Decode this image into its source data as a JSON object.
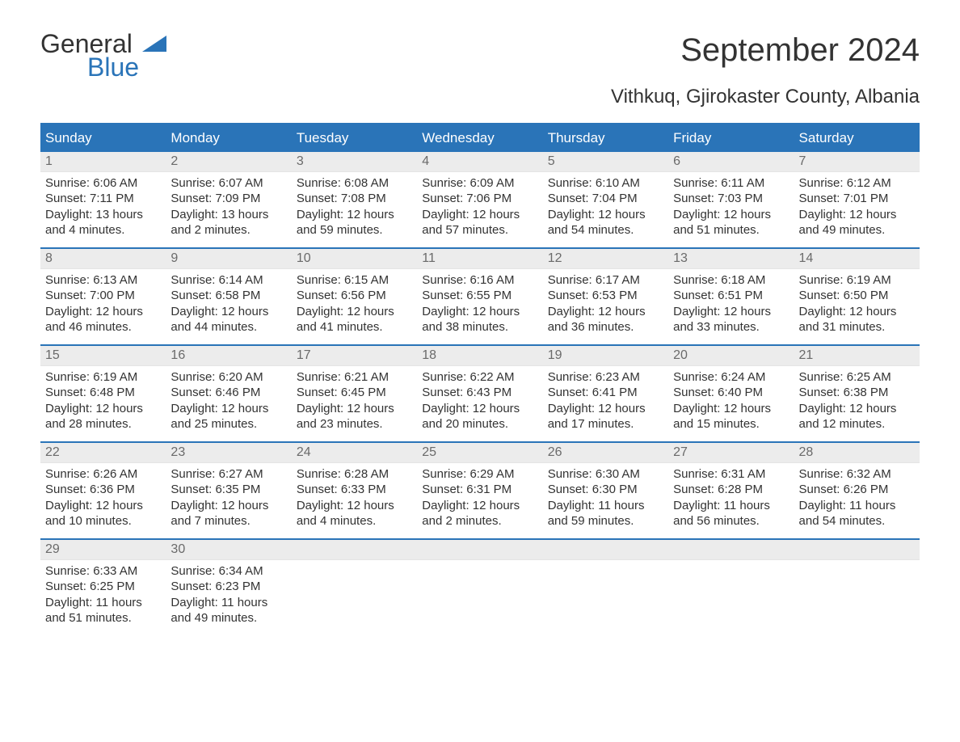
{
  "brand": {
    "line1": "General",
    "line2": "Blue"
  },
  "title": "September 2024",
  "location": "Vithkuq, Gjirokaster County, Albania",
  "colors": {
    "accent": "#2a74b8",
    "header_bg": "#2a74b8",
    "header_text": "#ffffff",
    "daynum_bg": "#ececec",
    "daynum_text": "#6a6a6a",
    "body_text": "#333333",
    "page_bg": "#ffffff"
  },
  "days_of_week": [
    "Sunday",
    "Monday",
    "Tuesday",
    "Wednesday",
    "Thursday",
    "Friday",
    "Saturday"
  ],
  "weeks": [
    [
      {
        "n": "1",
        "sunrise": "6:06 AM",
        "sunset": "7:11 PM",
        "dl1": "13 hours",
        "dl2": "and 4 minutes."
      },
      {
        "n": "2",
        "sunrise": "6:07 AM",
        "sunset": "7:09 PM",
        "dl1": "13 hours",
        "dl2": "and 2 minutes."
      },
      {
        "n": "3",
        "sunrise": "6:08 AM",
        "sunset": "7:08 PM",
        "dl1": "12 hours",
        "dl2": "and 59 minutes."
      },
      {
        "n": "4",
        "sunrise": "6:09 AM",
        "sunset": "7:06 PM",
        "dl1": "12 hours",
        "dl2": "and 57 minutes."
      },
      {
        "n": "5",
        "sunrise": "6:10 AM",
        "sunset": "7:04 PM",
        "dl1": "12 hours",
        "dl2": "and 54 minutes."
      },
      {
        "n": "6",
        "sunrise": "6:11 AM",
        "sunset": "7:03 PM",
        "dl1": "12 hours",
        "dl2": "and 51 minutes."
      },
      {
        "n": "7",
        "sunrise": "6:12 AM",
        "sunset": "7:01 PM",
        "dl1": "12 hours",
        "dl2": "and 49 minutes."
      }
    ],
    [
      {
        "n": "8",
        "sunrise": "6:13 AM",
        "sunset": "7:00 PM",
        "dl1": "12 hours",
        "dl2": "and 46 minutes."
      },
      {
        "n": "9",
        "sunrise": "6:14 AM",
        "sunset": "6:58 PM",
        "dl1": "12 hours",
        "dl2": "and 44 minutes."
      },
      {
        "n": "10",
        "sunrise": "6:15 AM",
        "sunset": "6:56 PM",
        "dl1": "12 hours",
        "dl2": "and 41 minutes."
      },
      {
        "n": "11",
        "sunrise": "6:16 AM",
        "sunset": "6:55 PM",
        "dl1": "12 hours",
        "dl2": "and 38 minutes."
      },
      {
        "n": "12",
        "sunrise": "6:17 AM",
        "sunset": "6:53 PM",
        "dl1": "12 hours",
        "dl2": "and 36 minutes."
      },
      {
        "n": "13",
        "sunrise": "6:18 AM",
        "sunset": "6:51 PM",
        "dl1": "12 hours",
        "dl2": "and 33 minutes."
      },
      {
        "n": "14",
        "sunrise": "6:19 AM",
        "sunset": "6:50 PM",
        "dl1": "12 hours",
        "dl2": "and 31 minutes."
      }
    ],
    [
      {
        "n": "15",
        "sunrise": "6:19 AM",
        "sunset": "6:48 PM",
        "dl1": "12 hours",
        "dl2": "and 28 minutes."
      },
      {
        "n": "16",
        "sunrise": "6:20 AM",
        "sunset": "6:46 PM",
        "dl1": "12 hours",
        "dl2": "and 25 minutes."
      },
      {
        "n": "17",
        "sunrise": "6:21 AM",
        "sunset": "6:45 PM",
        "dl1": "12 hours",
        "dl2": "and 23 minutes."
      },
      {
        "n": "18",
        "sunrise": "6:22 AM",
        "sunset": "6:43 PM",
        "dl1": "12 hours",
        "dl2": "and 20 minutes."
      },
      {
        "n": "19",
        "sunrise": "6:23 AM",
        "sunset": "6:41 PM",
        "dl1": "12 hours",
        "dl2": "and 17 minutes."
      },
      {
        "n": "20",
        "sunrise": "6:24 AM",
        "sunset": "6:40 PM",
        "dl1": "12 hours",
        "dl2": "and 15 minutes."
      },
      {
        "n": "21",
        "sunrise": "6:25 AM",
        "sunset": "6:38 PM",
        "dl1": "12 hours",
        "dl2": "and 12 minutes."
      }
    ],
    [
      {
        "n": "22",
        "sunrise": "6:26 AM",
        "sunset": "6:36 PM",
        "dl1": "12 hours",
        "dl2": "and 10 minutes."
      },
      {
        "n": "23",
        "sunrise": "6:27 AM",
        "sunset": "6:35 PM",
        "dl1": "12 hours",
        "dl2": "and 7 minutes."
      },
      {
        "n": "24",
        "sunrise": "6:28 AM",
        "sunset": "6:33 PM",
        "dl1": "12 hours",
        "dl2": "and 4 minutes."
      },
      {
        "n": "25",
        "sunrise": "6:29 AM",
        "sunset": "6:31 PM",
        "dl1": "12 hours",
        "dl2": "and 2 minutes."
      },
      {
        "n": "26",
        "sunrise": "6:30 AM",
        "sunset": "6:30 PM",
        "dl1": "11 hours",
        "dl2": "and 59 minutes."
      },
      {
        "n": "27",
        "sunrise": "6:31 AM",
        "sunset": "6:28 PM",
        "dl1": "11 hours",
        "dl2": "and 56 minutes."
      },
      {
        "n": "28",
        "sunrise": "6:32 AM",
        "sunset": "6:26 PM",
        "dl1": "11 hours",
        "dl2": "and 54 minutes."
      }
    ],
    [
      {
        "n": "29",
        "sunrise": "6:33 AM",
        "sunset": "6:25 PM",
        "dl1": "11 hours",
        "dl2": "and 51 minutes."
      },
      {
        "n": "30",
        "sunrise": "6:34 AM",
        "sunset": "6:23 PM",
        "dl1": "11 hours",
        "dl2": "and 49 minutes."
      },
      {
        "n": "",
        "empty": true
      },
      {
        "n": "",
        "empty": true
      },
      {
        "n": "",
        "empty": true
      },
      {
        "n": "",
        "empty": true
      },
      {
        "n": "",
        "empty": true
      }
    ]
  ],
  "labels": {
    "sunrise_prefix": "Sunrise: ",
    "sunset_prefix": "Sunset: ",
    "daylight_prefix": "Daylight: "
  }
}
